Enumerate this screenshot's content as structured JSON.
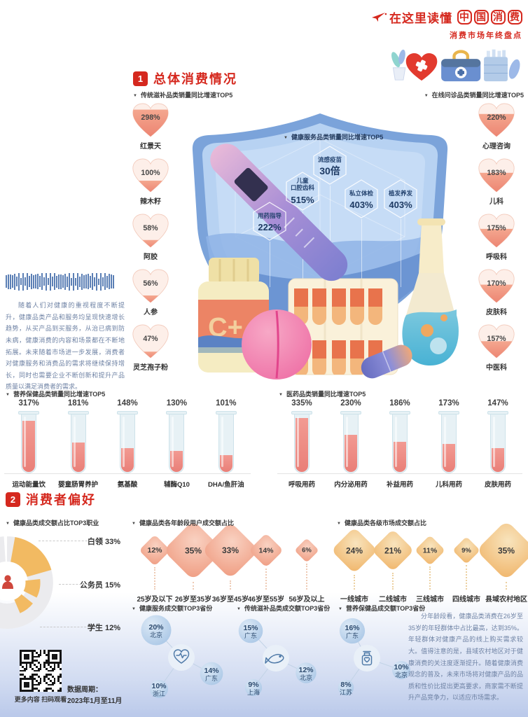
{
  "header": {
    "title_prefix": "在这里读懂",
    "title_boxed": "中国消费",
    "subtitle": "消费市场年终盘点"
  },
  "sections": [
    {
      "badge": "1",
      "title": "总体消费情况"
    },
    {
      "badge": "2",
      "title": "消费者偏好"
    }
  ],
  "paragraphs": {
    "overview": "随着人们对健康的重视程度不断提升，健康品类产品和服务均呈现快速增长趋势，从买产品到买服务，从治已病到防未病，健康消费的内容和场景都在不断地拓展。未来随着市场进一步发展，消费者对健康服务和消费品的需求将继续保持增长，同时也需要企业不断创新和提升产品质量以满足消费者的需求。",
    "age_insight": "分年龄段看，健康品类消费在26岁至35岁的年轻群体中占比最高，达到35%。年轻群体对健康产品的线上购买需求较大。值得注意的是，县域农村地区对于健康消费的关注度逐渐提升。随着健康消费观念的普及，未来市场将对健康产品的品质和性价比提出更高要求，商家需不断提升产品竞争力，以适应市场需求。"
  },
  "illustration": {
    "bottle_label": "C+"
  },
  "footer": {
    "qr_caption": "更多内容 扫码观看",
    "period_label": "数据周期：",
    "period_value": "2023年1月至11月"
  },
  "colors": {
    "accent_red": "#d5281e",
    "heart_fill": "#ef8b76",
    "shield_blue": "#7ba3da",
    "tube_fill": "#ee8a83",
    "diamond_pink": "#ef9b80",
    "diamond_orange": "#f0b468",
    "bubble_blue": "#aac7e6",
    "paragraph_blue": "#6e82a4",
    "text_dark": "#333333"
  },
  "chart_data": [
    {
      "id": "traditional_tonics",
      "type": "bar",
      "symbol": "heart",
      "title": "传统滋补品类销量同比增速TOP5",
      "categories": [
        "红景天",
        "辣木籽",
        "阿胶",
        "人参",
        "灵芝孢子粉"
      ],
      "values": [
        298,
        100,
        58,
        56,
        47
      ],
      "unit": "%",
      "value_labels": [
        "298%",
        "100%",
        "58%",
        "56%",
        "47%"
      ]
    },
    {
      "id": "online_consult",
      "type": "bar",
      "symbol": "heart",
      "title": "在线问诊品类销量同比增速TOP5",
      "categories": [
        "心理咨询",
        "儿科",
        "呼吸科",
        "皮肤科",
        "中医科"
      ],
      "values": [
        220,
        183,
        175,
        170,
        157
      ],
      "unit": "%",
      "value_labels": [
        "220%",
        "183%",
        "175%",
        "170%",
        "157%"
      ]
    },
    {
      "id": "health_services",
      "type": "bar",
      "symbol": "hexagon",
      "title": "健康服务品类销量同比增速TOP5",
      "categories": [
        "流感疫苗",
        "儿童口腔齿科",
        "私立体检",
        "植发养发",
        "用药指导"
      ],
      "values": [
        30,
        515,
        403,
        403,
        222
      ],
      "units": [
        "倍",
        "%",
        "%",
        "%",
        "%"
      ],
      "value_labels": [
        "30倍",
        "515%",
        "403%",
        "403%",
        "222%"
      ]
    },
    {
      "id": "nutrition_supplements",
      "type": "bar",
      "symbol": "test-tube",
      "title": "营养保健品类销量同比增速TOP5",
      "categories": [
        "运动能量饮",
        "婴童肠胃养护",
        "氨基酸",
        "辅酶Q10",
        "DHA/鱼肝油"
      ],
      "values": [
        317,
        181,
        148,
        130,
        101
      ],
      "unit": "%",
      "value_labels": [
        "317%",
        "181%",
        "148%",
        "130%",
        "101%"
      ]
    },
    {
      "id": "pharma",
      "type": "bar",
      "symbol": "test-tube",
      "title": "医药品类销量同比增速TOP5",
      "categories": [
        "呼吸用药",
        "内分泌用药",
        "补益用药",
        "儿科用药",
        "皮肤用药"
      ],
      "values": [
        335,
        230,
        186,
        173,
        147
      ],
      "unit": "%",
      "value_labels": [
        "335%",
        "230%",
        "186%",
        "173%",
        "147%"
      ]
    },
    {
      "id": "occupations",
      "type": "pie",
      "title": "健康品类成交额占比TOP3职业",
      "categories": [
        "白领",
        "公务员",
        "学生"
      ],
      "values": [
        33,
        15,
        12
      ],
      "unit": "%",
      "value_labels": [
        "33%",
        "15%",
        "12%"
      ]
    },
    {
      "id": "age_groups",
      "type": "bar",
      "symbol": "diamond",
      "title": "健康品类各年龄段用户成交额占比",
      "categories": [
        "25岁及以下",
        "26岁至35岁",
        "36岁至45岁",
        "46岁至55岁",
        "56岁及以上"
      ],
      "values": [
        12,
        35,
        33,
        14,
        6
      ],
      "unit": "%",
      "value_labels": [
        "12%",
        "35%",
        "33%",
        "14%",
        "6%"
      ]
    },
    {
      "id": "city_tiers",
      "type": "bar",
      "symbol": "diamond",
      "title": "健康品类各级市场成交额占比",
      "categories": [
        "一线城市",
        "二线城市",
        "三线城市",
        "四线城市",
        "县域农村地区"
      ],
      "values": [
        24,
        21,
        11,
        9,
        35
      ],
      "unit": "%",
      "value_labels": [
        "24%",
        "21%",
        "11%",
        "9%",
        "35%"
      ]
    },
    {
      "id": "province_health_services",
      "type": "bar",
      "symbol": "bubble",
      "icon": "heartbeat-icon",
      "title": "健康服务成交额TOP3省份",
      "categories": [
        "北京",
        "广东",
        "浙江"
      ],
      "values": [
        20,
        14,
        10
      ],
      "unit": "%",
      "value_labels": [
        "20%",
        "14%",
        "10%"
      ]
    },
    {
      "id": "province_tonics",
      "type": "bar",
      "symbol": "bubble",
      "icon": "fish-icon",
      "title": "传统滋补品类成交额TOP3省份",
      "categories": [
        "广东",
        "北京",
        "上海"
      ],
      "values": [
        15,
        12,
        9
      ],
      "unit": "%",
      "value_labels": [
        "15%",
        "12%",
        "9%"
      ]
    },
    {
      "id": "province_nutrition",
      "type": "bar",
      "symbol": "bubble",
      "icon": "bottle-icon",
      "title": "营养保健品成交额TOP3省份",
      "categories": [
        "广东",
        "北京",
        "江苏"
      ],
      "values": [
        16,
        10,
        8
      ],
      "unit": "%",
      "value_labels": [
        "16%",
        "10%",
        "8%"
      ]
    }
  ]
}
